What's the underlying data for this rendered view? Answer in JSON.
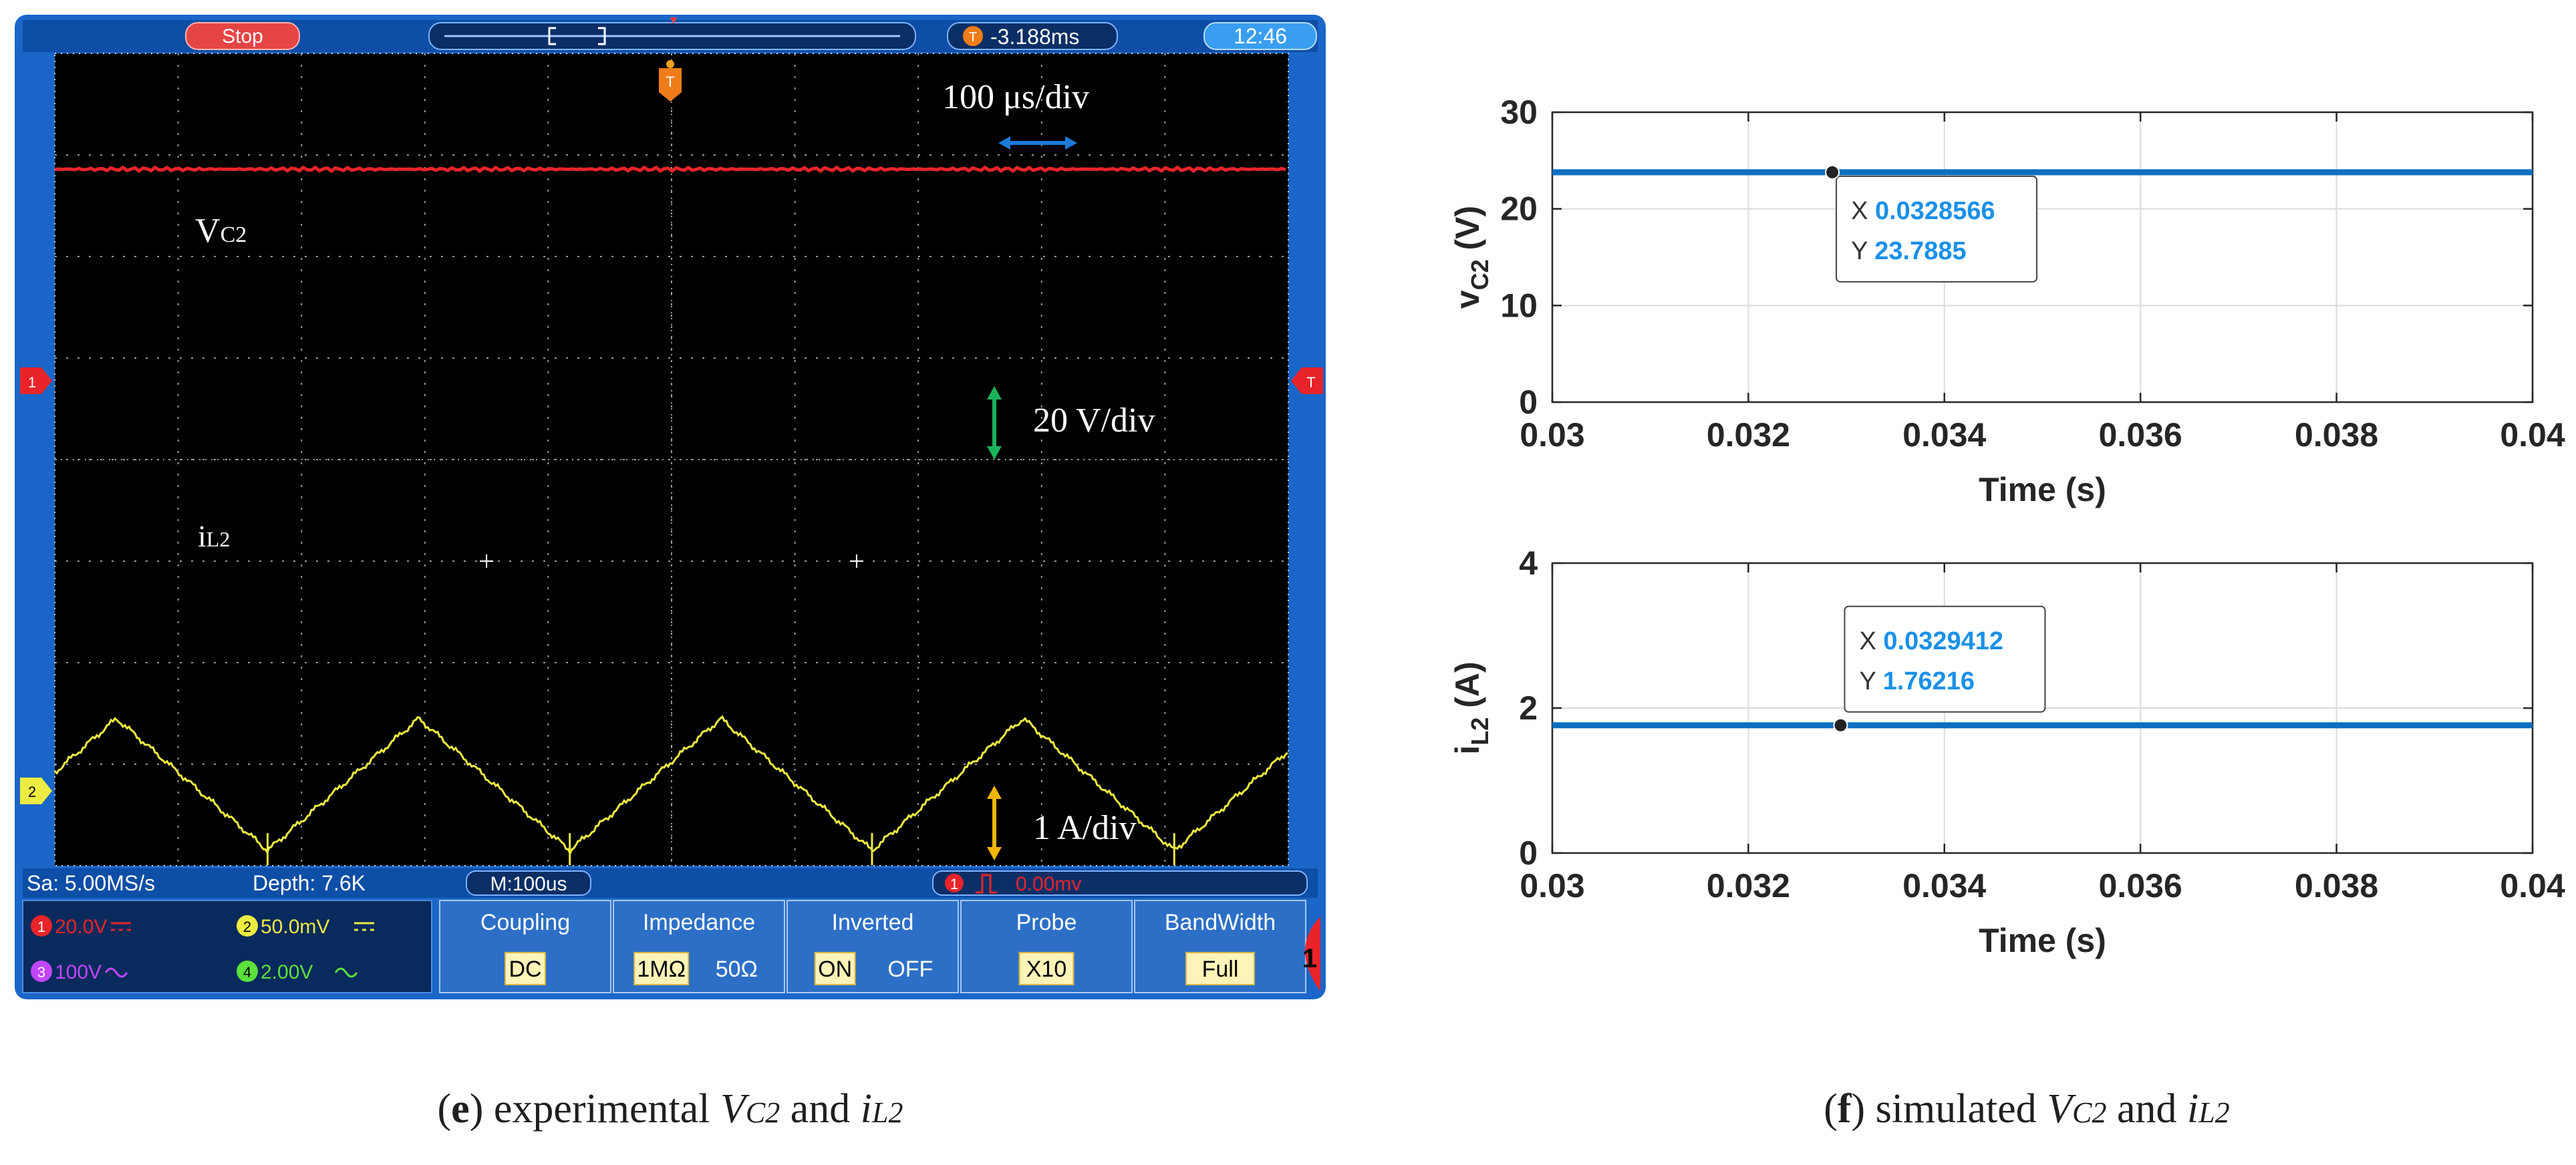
{
  "colors": {
    "scope_bezel": "#1a66c8",
    "scope_bg": "#000000",
    "grid": "#9a9a9a",
    "ch1": "#e8242a",
    "ch2": "#ecec43",
    "ch3": "#c246ff",
    "ch4": "#5be03c",
    "arrow_time": "#1c7ad6",
    "arrow_volt": "#1bb35a",
    "arrow_amp": "#f3b600",
    "sim_line": "#0b6fc0",
    "datatip_value": "#1a90e8",
    "axis_text": "#262626",
    "plot_grid": "#dcdcdc"
  },
  "scope": {
    "status": "Stop",
    "trigger_time": "-3.188ms",
    "clock": "12:46",
    "trigger_marker": "T",
    "ch1_marker": "1",
    "ch2_marker": "2",
    "time_scale": "100 μs/div",
    "volt_scale": "20 V/div",
    "amp_scale": "1 A/div",
    "trace1_label_main": "V",
    "trace1_label_sub": "C2",
    "trace2_label_main": "i",
    "trace2_label_sub": "L2",
    "sample_rate": "Sa: 5.00MS/s",
    "depth": "Depth: 7.6K",
    "timebase": "M:100us",
    "trigger_level": "0.00mv",
    "ch1_info": "20.0V",
    "ch2_info": "50.0mV",
    "ch3_info": "100V",
    "ch4_info": "2.00V",
    "badge1": "1",
    "badge2": "2",
    "badge3": "3",
    "badge4": "4",
    "menu": [
      {
        "title": "Coupling",
        "options": [
          "DC"
        ],
        "selected": 0
      },
      {
        "title": "Impedance",
        "options": [
          "1MΩ",
          "50Ω"
        ],
        "selected": 0
      },
      {
        "title": "Inverted",
        "options": [
          "ON",
          "OFF"
        ],
        "selected": 0
      },
      {
        "title": "Probe",
        "options": [
          "X10"
        ],
        "selected": 0
      },
      {
        "title": "BandWidth",
        "options": [
          "Full"
        ],
        "selected": 0
      }
    ],
    "side_tab": "1"
  },
  "captions": {
    "e_open": "(",
    "e_letter": "e",
    "e_close": ")",
    "e_text": " experimental ",
    "e_v": "V",
    "e_vsub": "C2",
    "e_and": " and ",
    "e_i": "i",
    "e_isub": "L2",
    "f_open": "(",
    "f_letter": "f",
    "f_close": ")",
    "f_text": " simulated ",
    "f_v": "V",
    "f_vsub": "C2",
    "f_and": " and ",
    "f_i": "i",
    "f_isub": "L2"
  },
  "chart_data": [
    {
      "type": "line",
      "title": "",
      "panel": "top",
      "x": [
        0.03,
        0.04
      ],
      "series": [
        {
          "name": "vC2",
          "values": [
            23.7885,
            23.7885
          ]
        }
      ],
      "xlabel": "Time (s)",
      "ylabel_main": "v",
      "ylabel_sub": "C2",
      "ylabel_unit": " (V)",
      "xlim": [
        0.03,
        0.04
      ],
      "ylim": [
        0,
        30
      ],
      "xticks": [
        0.03,
        0.032,
        0.034,
        0.036,
        0.038,
        0.04
      ],
      "xtick_labels": [
        "0.03",
        "0.032",
        "0.034",
        "0.036",
        "0.038",
        "0.04"
      ],
      "yticks": [
        0,
        10,
        20,
        30
      ],
      "ytick_labels": [
        "0",
        "10",
        "20",
        "30"
      ],
      "grid": true,
      "datatip": {
        "x": 0.0328566,
        "y": 23.7885,
        "x_label": "X",
        "y_label": "Y",
        "x_text": "0.0328566",
        "y_text": "23.7885"
      }
    },
    {
      "type": "line",
      "title": "",
      "panel": "bottom",
      "x": [
        0.03,
        0.04
      ],
      "series": [
        {
          "name": "iL2",
          "values": [
            1.76216,
            1.76216
          ]
        }
      ],
      "xlabel": "Time (s)",
      "ylabel_main": "i",
      "ylabel_sub": "L2",
      "ylabel_unit": " (A)",
      "xlim": [
        0.03,
        0.04
      ],
      "ylim": [
        0,
        4
      ],
      "xticks": [
        0.03,
        0.032,
        0.034,
        0.036,
        0.038,
        0.04
      ],
      "xtick_labels": [
        "0.03",
        "0.032",
        "0.034",
        "0.036",
        "0.038",
        "0.04"
      ],
      "yticks": [
        0,
        2,
        4
      ],
      "ytick_labels": [
        "0",
        "2",
        "4"
      ],
      "grid": true,
      "datatip": {
        "x": 0.0329412,
        "y": 1.76216,
        "x_label": "X",
        "y_label": "Y",
        "x_text": "0.0329412",
        "y_text": "1.76216"
      }
    },
    {
      "type": "line",
      "title": "",
      "panel": "scope",
      "series": [
        {
          "name": "VC2",
          "level_divs": 2.86,
          "ripple": "flat"
        },
        {
          "name": "iL2",
          "center_divs": -3.2,
          "peak_to_peak_divs": 1.3,
          "period_divs": 2.45,
          "first_peak_divs": 0.5
        }
      ],
      "grid": {
        "h_divs": 10,
        "v_divs": 8
      }
    }
  ]
}
